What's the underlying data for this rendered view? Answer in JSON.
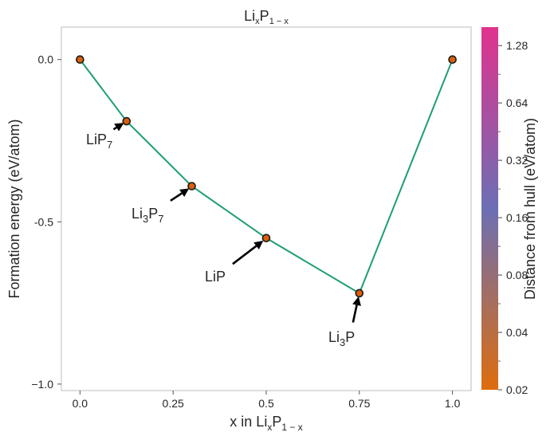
{
  "chart_data": {
    "type": "scatter",
    "title": {
      "base": "Li",
      "sub1": "x",
      "mid": "P",
      "sub2": "1 − x"
    },
    "xlabel": {
      "pre": "x in Li",
      "sub1": "x",
      "mid": "P",
      "sub2": "1 − x"
    },
    "ylabel": "Formation energy (eV/atom)",
    "xlim": [
      -0.05,
      1.05
    ],
    "ylim": [
      -1.02,
      0.1
    ],
    "x_ticks": [
      0.0,
      0.25,
      0.5,
      0.75,
      1.0
    ],
    "x_tick_labels": [
      "0.0",
      "0.25",
      "0.5",
      "0.75",
      "1.0"
    ],
    "y_ticks": [
      0.0,
      -0.5,
      -1.0
    ],
    "y_tick_labels": [
      "0.0",
      "-0.5",
      "−1.0"
    ],
    "grid": false,
    "series": [
      {
        "points": [
          {
            "x": 0.0,
            "y": 0.0
          },
          {
            "x": 0.125,
            "y": -0.19
          },
          {
            "x": 0.3,
            "y": -0.39
          },
          {
            "x": 0.5,
            "y": -0.55
          },
          {
            "x": 0.75,
            "y": -0.72
          },
          {
            "x": 1.0,
            "y": 0.0
          }
        ]
      }
    ],
    "annotations": [
      {
        "base": "LiP",
        "sub": "7",
        "tail_data": [
          0.09,
          -0.215
        ],
        "head_data": [
          0.118,
          -0.195
        ]
      },
      {
        "base": "Li",
        "sub": "3",
        "mid": "P",
        "sub2": "7",
        "tail_data": [
          0.243,
          -0.435
        ],
        "head_data": [
          0.293,
          -0.397
        ]
      },
      {
        "base": "LiP",
        "sub": "",
        "tail_data": [
          0.41,
          -0.63
        ],
        "head_data": [
          0.492,
          -0.558
        ]
      },
      {
        "base": "Li",
        "sub": "3",
        "mid": "P",
        "sub2": "",
        "tail_data": [
          0.733,
          -0.81
        ],
        "head_data": [
          0.748,
          -0.73
        ]
      }
    ],
    "colorbar": {
      "label": "Distance from hull (eV/atom)",
      "scale": "log",
      "range": [
        0.02,
        1.6
      ],
      "tick_labels": [
        "0.02",
        "0.04",
        "0.08",
        "0.16",
        "0.32",
        "0.64",
        "1.28"
      ],
      "colors": [
        "#dd6d0e",
        "#6c6fb4",
        "#e0338e"
      ]
    },
    "colors": {
      "line": "#1d9e78",
      "marker_fill": "#d95f0e",
      "marker_edge": "#1a1a1a"
    }
  }
}
